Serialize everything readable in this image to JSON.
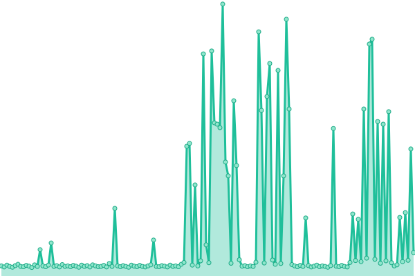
{
  "chart_data": {
    "type": "line",
    "series": [
      {
        "color": "#1fbf9a",
        "values": [
          1.2,
          0.8,
          1.5,
          1,
          0.7,
          1.3,
          1.8,
          1,
          0.9,
          1.4,
          1.1,
          0.6,
          1.6,
          1,
          7.3,
          1.2,
          0.9,
          1.5,
          9.8,
          1,
          1.3,
          0.8,
          1.7,
          1,
          1.2,
          0.9,
          1.4,
          1.1,
          0.7,
          1.5,
          1,
          1.3,
          0.8,
          1.6,
          1.2,
          0.9,
          1,
          1.4,
          0.8,
          2.1,
          1,
          22.8,
          1.2,
          0.9,
          1.3,
          1,
          0.7,
          1.5,
          1.1,
          0.9,
          1.4,
          1,
          0.8,
          1.2,
          1.6,
          10.9,
          1,
          0.9,
          1.3,
          1.1,
          0.8,
          1.5,
          1,
          1.2,
          0.9,
          1.8,
          2.5,
          46.1,
          47.2,
          1.5,
          31.6,
          1.2,
          3.1,
          80.8,
          9.1,
          2.4,
          81.9,
          54.9,
          54.4,
          53.1,
          99.5,
          40.2,
          35.0,
          2.2,
          63.2,
          38.9,
          3.5,
          1.1,
          1.3,
          0.9,
          1.2,
          1,
          2.6,
          89.1,
          59.6,
          2.3,
          64.8,
          77.2,
          3.4,
          1.8,
          74.6,
          2.1,
          35.0,
          93.8,
          60.1,
          1.7,
          1.2,
          0.9,
          1.4,
          1,
          19.2,
          1.3,
          0.8,
          1.1,
          1.5,
          0.9,
          1.2,
          1,
          0.7,
          1.3,
          52.8,
          1.1,
          0.9,
          1.4,
          1,
          0.8,
          2.5,
          20.7,
          3.2,
          18.7,
          2.8,
          60.1,
          4.1,
          84.5,
          86.3,
          3.7,
          55.4,
          2.2,
          54.4,
          3.1,
          59.1,
          2.4,
          1.2,
          1.6,
          19.4,
          2.8,
          21.2,
          3.3,
          45.1,
          6.2
        ]
      }
    ],
    "ylim": [
      0,
      100
    ]
  }
}
